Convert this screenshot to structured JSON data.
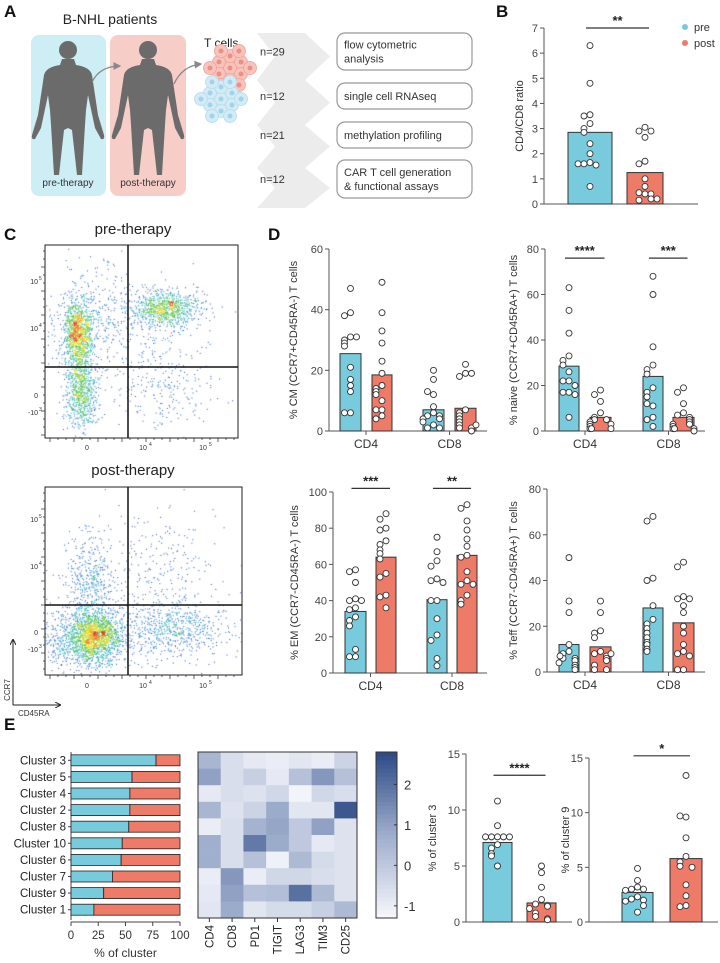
{
  "panel_labels": [
    "A",
    "B",
    "C",
    "D",
    "E"
  ],
  "panel_a": {
    "title": "B-NHL patients",
    "pre_label": "pre-therapy",
    "post_label": "post-therapy",
    "cells_label": "T cells",
    "rows": [
      {
        "n": "n=29",
        "assay": [
          "flow cytometric",
          "analysis"
        ]
      },
      {
        "n": "n=12",
        "assay": [
          "single cell RNAseq"
        ]
      },
      {
        "n": "n=21",
        "assay": [
          "methylation profiling"
        ]
      },
      {
        "n": "n=12",
        "assay": [
          "CAR T cell generation",
          "& functional assays"
        ]
      }
    ],
    "colors": {
      "pre_bg": "#cdeef4",
      "post_bg": "#f6cdc7",
      "figure": "#6b6b6b",
      "chevron": "#ececec"
    }
  },
  "legend": {
    "series": [
      {
        "name": "pre",
        "color": "#78cbdc"
      },
      {
        "name": "post",
        "color": "#ee7a68"
      }
    ]
  },
  "chart_data": [
    {
      "id": "B",
      "type": "bar",
      "ylabel": "CD4/CD8 ratio",
      "ylim": [
        0,
        7
      ],
      "yticks": [
        0,
        1,
        2,
        3,
        4,
        5,
        6,
        7
      ],
      "categories": [],
      "bars": [
        {
          "series": "pre",
          "value": 2.85,
          "points": [
            6.3,
            4.8,
            3.55,
            3.5,
            3.2,
            3.0,
            2.85,
            2.4,
            2.0,
            1.65,
            1.6,
            1.55,
            1.6,
            0.7
          ]
        },
        {
          "series": "post",
          "value": 1.25,
          "points": [
            3.05,
            2.9,
            2.9,
            2.65,
            1.7,
            1.6,
            1.0,
            0.7,
            0.4,
            0.45,
            0.4,
            0.2,
            0.15,
            0.2
          ]
        }
      ],
      "significance": [
        {
          "bars": [
            0,
            1
          ],
          "label": "**",
          "y": 7
        }
      ]
    },
    {
      "id": "D-CM",
      "type": "bar",
      "ylabel": "% CM (CCR7+CD45RA-) T cells",
      "ylim": [
        0,
        60
      ],
      "yticks": [
        0,
        20,
        40,
        60
      ],
      "categories": [
        "CD4",
        "CD8"
      ],
      "bars": [
        {
          "series": "pre",
          "group": "CD4",
          "value": 25.5,
          "points": [
            47,
            39,
            38,
            31,
            30,
            31,
            29,
            28,
            21,
            17,
            15,
            13,
            6,
            6
          ]
        },
        {
          "series": "post",
          "group": "CD4",
          "value": 18.5,
          "points": [
            49,
            39,
            33,
            29,
            23,
            19,
            15,
            14,
            13,
            12,
            10,
            7,
            7,
            5,
            4
          ]
        },
        {
          "series": "pre",
          "group": "CD8",
          "value": 7,
          "points": [
            20,
            17,
            12,
            13,
            8,
            6,
            5,
            5,
            4,
            4,
            2,
            1,
            1,
            3
          ]
        },
        {
          "series": "post",
          "group": "CD8",
          "value": 7.5,
          "points": [
            22,
            19,
            18,
            19,
            7,
            6,
            5,
            4,
            3,
            2,
            1,
            1,
            0,
            2
          ]
        }
      ],
      "significance": []
    },
    {
      "id": "D-naive",
      "type": "bar",
      "ylabel": "% naive (CCR7+CD45RA+) T cells",
      "ylim": [
        0,
        80
      ],
      "yticks": [
        0,
        20,
        40,
        60,
        80
      ],
      "categories": [
        "CD4",
        "CD8"
      ],
      "bars": [
        {
          "series": "pre",
          "group": "CD4",
          "value": 28.5,
          "points": [
            63,
            53,
            43,
            33,
            31,
            29,
            26,
            22,
            22,
            17,
            17,
            16,
            6,
            20
          ]
        },
        {
          "series": "post",
          "group": "CD4",
          "value": 6,
          "points": [
            18,
            16,
            13,
            8,
            6,
            5,
            5,
            4,
            3,
            3,
            2,
            1,
            1,
            1
          ]
        },
        {
          "series": "pre",
          "group": "CD8",
          "value": 24,
          "points": [
            68,
            60,
            37,
            29,
            27,
            25,
            19,
            17,
            15,
            11,
            6,
            5,
            2,
            12
          ]
        },
        {
          "series": "post",
          "group": "CD8",
          "value": 6,
          "points": [
            19,
            17,
            12,
            8,
            7,
            6,
            5,
            4,
            3,
            3,
            2,
            1,
            1,
            1,
            0
          ]
        }
      ],
      "significance": [
        {
          "bars": [
            0,
            1
          ],
          "label": "****",
          "y": 76
        },
        {
          "bars": [
            2,
            3
          ],
          "label": "***",
          "y": 76
        }
      ]
    },
    {
      "id": "D-EM",
      "type": "bar",
      "ylabel": "% EM (CCR7-CD45RA-) T cells",
      "ylim": [
        0,
        100
      ],
      "yticks": [
        0,
        20,
        40,
        60,
        80,
        100
      ],
      "categories": [
        "CD4",
        "CD8"
      ],
      "bars": [
        {
          "series": "pre",
          "group": "CD4",
          "value": 34,
          "points": [
            57,
            56,
            50,
            41,
            40,
            40,
            36,
            35,
            31,
            29,
            26,
            13,
            9,
            9
          ]
        },
        {
          "series": "post",
          "group": "CD4",
          "value": 64,
          "points": [
            88,
            85,
            80,
            79,
            73,
            71,
            68,
            66,
            63,
            55,
            53,
            43,
            42,
            36
          ]
        },
        {
          "series": "pre",
          "group": "CD8",
          "value": 40.5,
          "points": [
            75,
            67,
            62,
            59,
            52,
            51,
            50,
            40,
            30,
            21,
            18,
            8,
            4,
            40
          ]
        },
        {
          "series": "post",
          "group": "CD8",
          "value": 65,
          "points": [
            93,
            91,
            84,
            79,
            74,
            70,
            65,
            64,
            56,
            51,
            49,
            49,
            43,
            40,
            38
          ]
        }
      ],
      "significance": [
        {
          "bars": [
            0,
            1
          ],
          "label": "***",
          "y": 102
        },
        {
          "bars": [
            2,
            3
          ],
          "label": "**",
          "y": 102
        }
      ]
    },
    {
      "id": "D-Teff",
      "type": "bar",
      "ylabel": "% Teff (CCR7-CD45RA+) T cells",
      "ylim": [
        0,
        80
      ],
      "yticks": [
        0,
        20,
        40,
        60,
        80
      ],
      "categories": [
        "CD4",
        "CD8"
      ],
      "bars": [
        {
          "series": "pre",
          "group": "CD4",
          "value": 12,
          "points": [
            50,
            31,
            26,
            12,
            9,
            8,
            6,
            6,
            5,
            4,
            3,
            2,
            1,
            7
          ]
        },
        {
          "series": "post",
          "group": "CD4",
          "value": 11,
          "points": [
            31,
            26,
            18,
            17,
            15,
            9,
            8,
            7,
            6,
            5,
            3,
            1,
            1,
            8
          ]
        },
        {
          "series": "pre",
          "group": "CD8",
          "value": 28,
          "points": [
            68,
            66,
            41,
            40,
            29,
            23,
            21,
            19,
            17,
            15,
            13,
            12,
            10,
            9
          ]
        },
        {
          "series": "post",
          "group": "CD8",
          "value": 21.5,
          "points": [
            48,
            46,
            33,
            32,
            32,
            29,
            26,
            20,
            17,
            12,
            9,
            8,
            1,
            1,
            7
          ]
        }
      ],
      "significance": []
    },
    {
      "id": "C-pre",
      "type": "scatter-density",
      "title": "pre-therapy",
      "xticks": [
        {
          "base": "0",
          "exp": ""
        },
        {
          "base": "10",
          "exp": "4"
        },
        {
          "base": "10",
          "exp": "5"
        }
      ],
      "yticks": [
        {
          "base": "-10",
          "exp": "3"
        },
        {
          "base": "0",
          "exp": ""
        },
        {
          "base": "10",
          "exp": "4"
        },
        {
          "base": "10",
          "exp": "5"
        }
      ]
    },
    {
      "id": "C-post",
      "type": "scatter-density",
      "title": "post-therapy",
      "xlabel": "CD45RA",
      "ylabel": "CCR7",
      "xticks": [
        {
          "base": "0",
          "exp": ""
        },
        {
          "base": "10",
          "exp": "4"
        },
        {
          "base": "10",
          "exp": "5"
        }
      ],
      "yticks": [
        {
          "base": "-10",
          "exp": "3"
        },
        {
          "base": "0",
          "exp": ""
        },
        {
          "base": "10",
          "exp": "4"
        },
        {
          "base": "10",
          "exp": "5"
        }
      ]
    },
    {
      "id": "E-composition",
      "type": "bar",
      "orientation": "horizontal-stacked",
      "xlabel": "% of cluster",
      "xlim": [
        0,
        100
      ],
      "xticks": [
        0,
        25,
        50,
        75,
        100
      ],
      "categories": [
        "Cluster 3",
        "Cluster 5",
        "Cluster 4",
        "Cluster 2",
        "Cluster 8",
        "Cluster 10",
        "Cluster 6",
        "Cluster 7",
        "Cluster 9",
        "Cluster 1"
      ],
      "series": [
        {
          "name": "pre",
          "values": [
            78,
            56,
            54,
            54,
            53,
            47,
            46,
            38,
            30,
            21
          ]
        },
        {
          "name": "post",
          "values": [
            22,
            44,
            46,
            46,
            47,
            53,
            54,
            62,
            70,
            79
          ]
        }
      ]
    },
    {
      "id": "E-heatmap",
      "type": "heatmap",
      "rows": [
        "Cluster 3",
        "Cluster 5",
        "Cluster 4",
        "Cluster 2",
        "Cluster 8",
        "Cluster 10",
        "Cluster 6",
        "Cluster 7",
        "Cluster 9",
        "Cluster 1"
      ],
      "cols": [
        "CD4",
        "CD8",
        "PD1",
        "TIGIT",
        "LAG3",
        "TIM3",
        "CD25"
      ],
      "values": [
        [
          0.5,
          -0.6,
          -0.9,
          -1.0,
          -0.8,
          -1.0,
          -0.3
        ],
        [
          1.0,
          -0.6,
          -0.2,
          -0.9,
          0.2,
          1.2,
          0.2
        ],
        [
          -0.9,
          -0.6,
          -0.7,
          -0.4,
          -1.2,
          -0.4,
          -0.6
        ],
        [
          0.5,
          -0.7,
          -0.3,
          0.8,
          -0.8,
          -0.8,
          2.5
        ],
        [
          -1.0,
          -0.6,
          0.6,
          0.9,
          0.0,
          1.0,
          -0.7
        ],
        [
          0.7,
          -0.6,
          1.8,
          0.8,
          0.0,
          -0.9,
          -0.7
        ],
        [
          0.7,
          -0.6,
          0.2,
          -1.1,
          0.4,
          -0.5,
          -0.7
        ],
        [
          -1.0,
          1.2,
          -1.0,
          -0.4,
          -0.4,
          -0.6,
          -0.7
        ],
        [
          -0.9,
          1.0,
          0.2,
          0.3,
          2.0,
          0.4,
          -0.7
        ],
        [
          -0.8,
          0.8,
          -0.8,
          -0.5,
          -0.5,
          -0.2,
          0.4
        ]
      ],
      "colorbar": {
        "range": [
          -1.3,
          2.8
        ],
        "ticks": [
          -1,
          0,
          1,
          2
        ],
        "low_color": "#f7f8fc",
        "mid_color": "#9eadcc",
        "high_color": "#2b4a85"
      }
    },
    {
      "id": "E-cluster3",
      "type": "bar",
      "ylabel": "% of cluster 3",
      "ylim": [
        0,
        15
      ],
      "yticks": [
        0,
        5,
        10,
        15
      ],
      "categories": [],
      "bars": [
        {
          "series": "pre",
          "value": 7.1,
          "points": [
            10.8,
            8.6,
            7.6,
            7.6,
            7.6,
            7.6,
            7.6,
            6.9,
            6.6,
            6.1,
            5.9,
            5.0
          ]
        },
        {
          "series": "post",
          "value": 1.7,
          "points": [
            5.0,
            4.4,
            3.1,
            2.0,
            1.6,
            1.5,
            1.4,
            1.2,
            0.8,
            0.5,
            0.3,
            0.2
          ]
        }
      ],
      "significance": [
        {
          "bars": [
            0,
            1
          ],
          "label": "****",
          "y": 13.1
        }
      ]
    },
    {
      "id": "E-cluster9",
      "type": "bar",
      "ylabel": "% of cluster 9",
      "ylim": [
        0,
        15
      ],
      "yticks": [
        0,
        5,
        10,
        15
      ],
      "categories": [],
      "bars": [
        {
          "series": "pre",
          "value": 2.7,
          "points": [
            4.9,
            3.8,
            3.2,
            3.0,
            3.0,
            2.9,
            2.3,
            2.1,
            2.0,
            1.9,
            1.5,
            0.9
          ]
        },
        {
          "series": "post",
          "value": 5.8,
          "points": [
            13.4,
            9.6,
            9.7,
            7.7,
            6.0,
            5.5,
            5.1,
            5.0,
            3.4,
            2.4,
            1.5,
            1.4
          ]
        }
      ],
      "significance": [
        {
          "bars": [
            0,
            1
          ],
          "label": "*",
          "y": 15.2
        }
      ]
    }
  ]
}
